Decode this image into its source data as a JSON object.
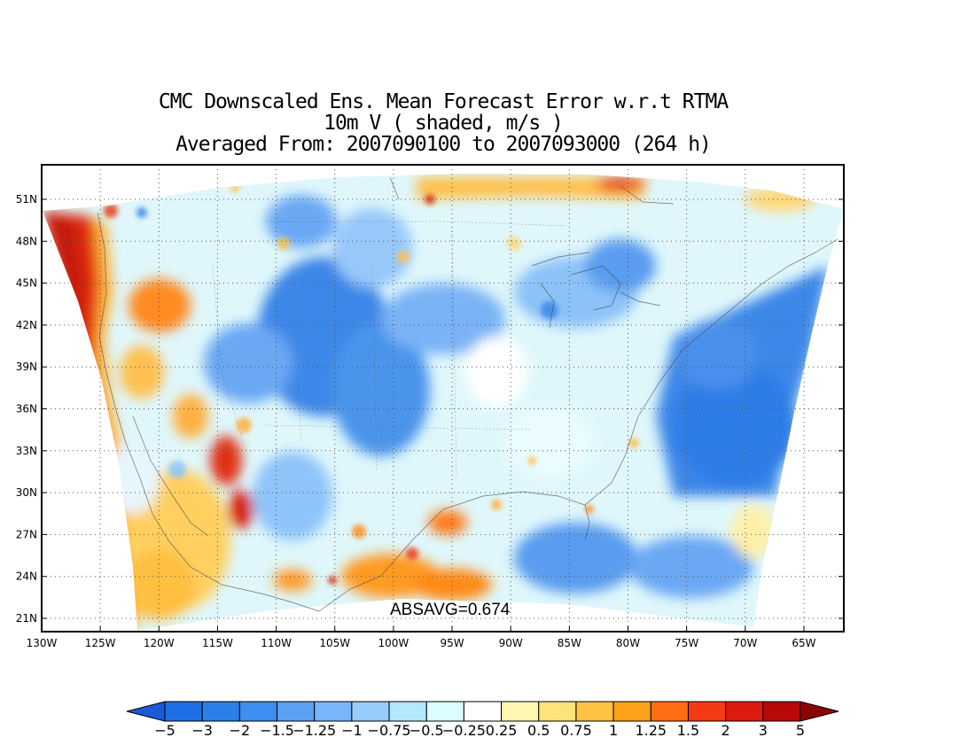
{
  "title": {
    "line1": "CMC Downscaled Ens. Mean Forecast Error w.r.t RTMA",
    "line2": "10m V ( shaded, m/s )",
    "line3": "Averaged From: 2007090100 to 2007093000 (264 h)"
  },
  "map": {
    "projection": "lambert-conformal-like",
    "lat_ticks": [
      "51N",
      "48N",
      "45N",
      "42N",
      "39N",
      "36N",
      "33N",
      "30N",
      "27N",
      "24N",
      "21N"
    ],
    "lon_ticks": [
      "130W",
      "125W",
      "120W",
      "115W",
      "110W",
      "105W",
      "100W",
      "95W",
      "90W",
      "85W",
      "80W",
      "75W",
      "70W",
      "65W"
    ],
    "grid": "dotted",
    "features": [
      "coastlines",
      "country-borders",
      "us-state-borders",
      "great-lakes"
    ]
  },
  "stat": {
    "text": "ABSAVG=0.674"
  },
  "colorbar": {
    "labels": [
      "-5",
      "-3",
      "-2",
      "-1.5",
      "-1.25",
      "-1",
      "-0.75",
      "-0.5",
      "-0.25",
      "0.25",
      "0.5",
      "0.75",
      "1",
      "1.25",
      "1.5",
      "2",
      "3",
      "5"
    ],
    "colors": [
      "#1e6ee6",
      "#2b7fe8",
      "#3e8df0",
      "#5aa0f5",
      "#78b6fa",
      "#98ccfb",
      "#b4e8fd",
      "#dcfcff",
      "#ffffff",
      "#fff6b0",
      "#ffe27a",
      "#ffc242",
      "#ffa11a",
      "#ff6e10",
      "#f43a14",
      "#dd1a10",
      "#b80808"
    ],
    "low_arrow_color": "#1a5ad8",
    "high_arrow_color": "#8a0505"
  },
  "regions": [
    {
      "name": "pacific-coast-positive",
      "level": "strong-positive"
    },
    {
      "name": "central-plains-negative",
      "level": "negative"
    },
    {
      "name": "atlantic-negative",
      "level": "negative"
    },
    {
      "name": "mexico-positive",
      "level": "positive"
    }
  ]
}
